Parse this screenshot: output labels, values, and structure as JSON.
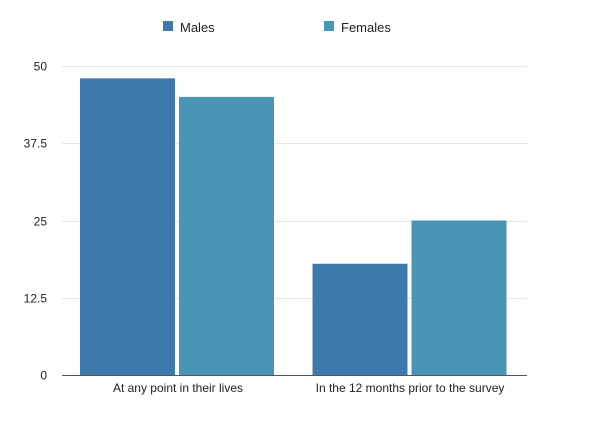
{
  "chart_data": {
    "type": "bar",
    "categories": [
      "At any point in their lives",
      "In the 12 months prior to the survey"
    ],
    "series": [
      {
        "name": "Males",
        "values": [
          48,
          18
        ],
        "color": "#3e79ad"
      },
      {
        "name": "Females",
        "values": [
          45,
          25
        ],
        "color": "#4a94b5"
      }
    ],
    "ylim": [
      0,
      50
    ],
    "yticks": [
      0,
      12.5,
      25,
      37.5,
      50
    ],
    "ytick_labels": [
      "0",
      "12.5",
      "25",
      "37.5",
      "50"
    ],
    "grid": true,
    "legend_position": "top-center"
  }
}
